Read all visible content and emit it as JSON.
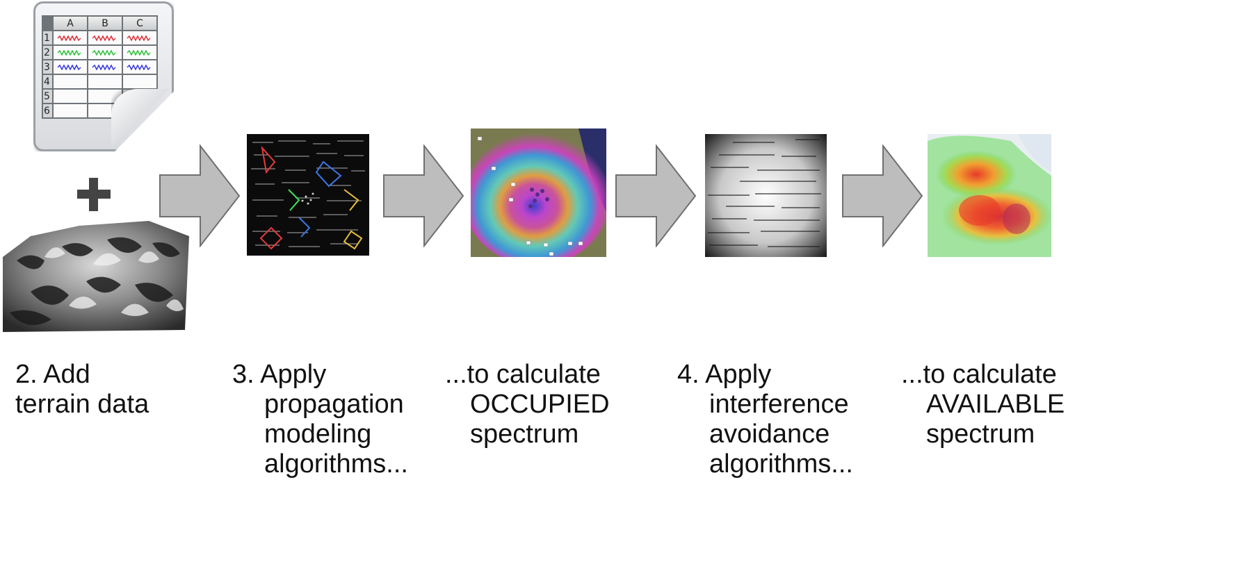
{
  "spreadsheet": {
    "columns": [
      "A",
      "B",
      "C"
    ],
    "rows": [
      "1",
      "2",
      "3",
      "4",
      "5",
      "6"
    ],
    "wave_colors": [
      "#e0303a",
      "#2fc43a",
      "#3a3ae0"
    ]
  },
  "plus_icon": "plus-icon",
  "steps": [
    {
      "lines": [
        "2. Add",
        "terrain data"
      ]
    },
    {
      "lines": [
        "3. Apply",
        "propagation",
        "modeling",
        "algorithms..."
      ]
    },
    {
      "lines": [
        "...to calculate",
        "OCCUPIED",
        "spectrum"
      ]
    },
    {
      "lines": [
        "4. Apply",
        "interference",
        "avoidance",
        "algorithms..."
      ]
    },
    {
      "lines": [
        "...to calculate",
        "AVAILABLE",
        "spectrum"
      ]
    }
  ],
  "colors": {
    "arrow_fill": "#bdbdbd",
    "arrow_stroke": "#6f6f6f",
    "chalkboard": "#0b0b0b",
    "text": "#111111"
  }
}
